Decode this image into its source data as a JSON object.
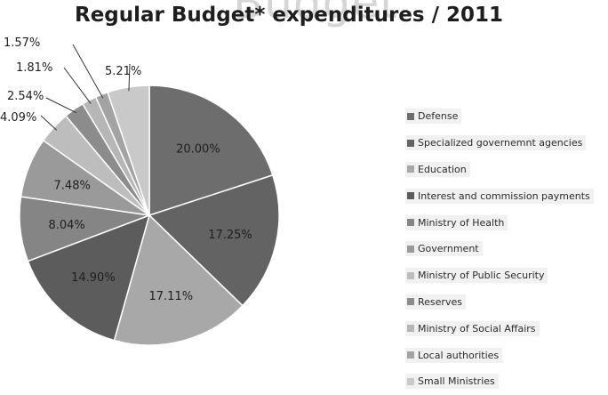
{
  "ghost_title": "Budget",
  "chart_data": {
    "type": "pie",
    "title": "Regular Budget* expenditures / 2011",
    "legend_position": "right",
    "slices": [
      {
        "label": "Defense",
        "value": 20.0,
        "display": "20.00%",
        "color": "#6d6d6d"
      },
      {
        "label": "Specialized governemnt agencies",
        "value": 17.25,
        "display": "17.25%",
        "color": "#636363"
      },
      {
        "label": "Education",
        "value": 17.11,
        "display": "17.11%",
        "color": "#a8a8a8"
      },
      {
        "label": "Interest and commission payments",
        "value": 14.9,
        "display": "14.90%",
        "color": "#5c5c5c"
      },
      {
        "label": "Ministry of Health",
        "value": 8.04,
        "display": "8.04%",
        "color": "#858585"
      },
      {
        "label": "Government",
        "value": 7.48,
        "display": "7.48%",
        "color": "#9a9a9a"
      },
      {
        "label": "Ministry of Public Security",
        "value": 4.09,
        "display": "4.09%",
        "color": "#bdbdbd"
      },
      {
        "label": "Reserves",
        "value": 2.54,
        "display": "2.54%",
        "color": "#8c8c8c"
      },
      {
        "label": "Ministry of Social Affairs",
        "value": 1.81,
        "display": "1.81%",
        "color": "#b6b6b6"
      },
      {
        "label": "Local authorities",
        "value": 1.57,
        "display": "1.57%",
        "color": "#a3a3a3"
      },
      {
        "label": "Small Ministries",
        "value": 5.21,
        "display": "5.21%",
        "color": "#c9c9c9"
      }
    ]
  }
}
